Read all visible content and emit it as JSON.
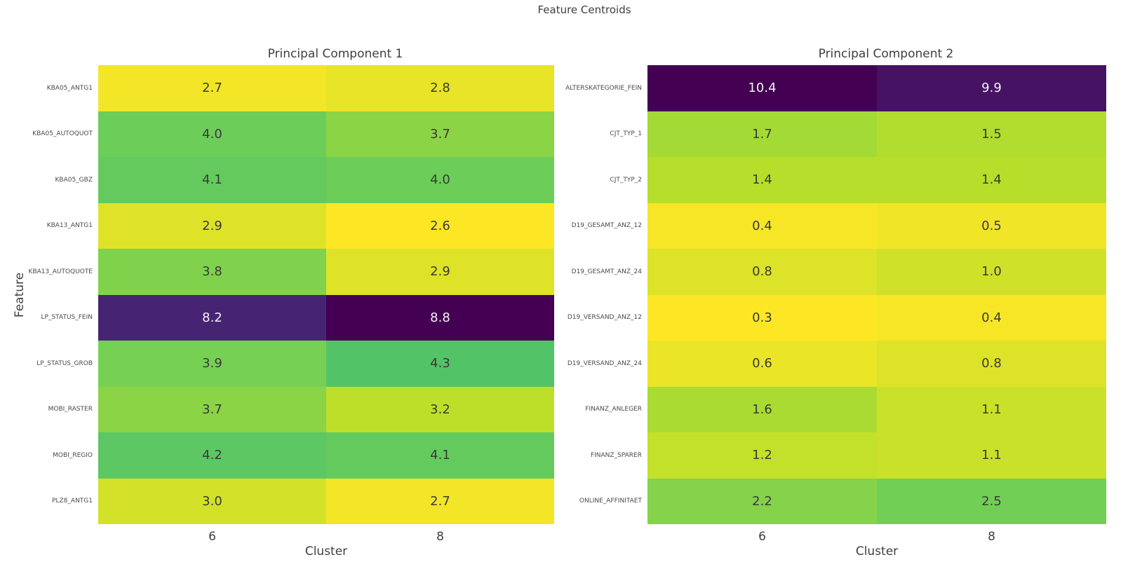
{
  "figure": {
    "title": "Feature Centroids"
  },
  "chart_data": [
    {
      "type": "heatmap",
      "title": "Principal Component 1",
      "xlabel": "Cluster",
      "ylabel": "Feature",
      "x_tick_labels": [
        "6",
        "8"
      ],
      "y_tick_labels": [
        "KBA05_ANTG1",
        "KBA05_AUTOQUOT",
        "KBA05_GBZ",
        "KBA13_ANTG1",
        "KBA13_AUTOQUOTE",
        "LP_STATUS_FEIN",
        "LP_STATUS_GROB",
        "MOBI_RASTER",
        "MOBI_REGIO",
        "PLZ8_ANTG1"
      ],
      "values": [
        [
          2.7,
          2.8
        ],
        [
          4.0,
          3.7
        ],
        [
          4.1,
          4.0
        ],
        [
          2.9,
          2.6
        ],
        [
          3.8,
          2.9
        ],
        [
          8.2,
          8.8
        ],
        [
          3.9,
          4.3
        ],
        [
          3.7,
          3.2
        ],
        [
          4.2,
          4.1
        ],
        [
          3.0,
          2.7
        ]
      ],
      "vmin": 2.6,
      "vmax": 8.8,
      "colormap": "viridis_r",
      "annotated": true,
      "annot_decimals": 1,
      "legend": "none",
      "grid": "off"
    },
    {
      "type": "heatmap",
      "title": "Principal Component 2",
      "xlabel": "Cluster",
      "ylabel": "",
      "x_tick_labels": [
        "6",
        "8"
      ],
      "y_tick_labels": [
        "ALTERSKATEGORIE_FEIN",
        "CJT_TYP_1",
        "CJT_TYP_2",
        "D19_GESAMT_ANZ_12",
        "D19_GESAMT_ANZ_24",
        "D19_VERSAND_ANZ_12",
        "D19_VERSAND_ANZ_24",
        "FINANZ_ANLEGER",
        "FINANZ_SPARER",
        "ONLINE_AFFINITAET"
      ],
      "values": [
        [
          10.4,
          9.9
        ],
        [
          1.7,
          1.5
        ],
        [
          1.4,
          1.4
        ],
        [
          0.4,
          0.5
        ],
        [
          0.8,
          1.0
        ],
        [
          0.3,
          0.4
        ],
        [
          0.6,
          0.8
        ],
        [
          1.6,
          1.1
        ],
        [
          1.2,
          1.1
        ],
        [
          2.2,
          2.5
        ]
      ],
      "vmin": 0.3,
      "vmax": 10.4,
      "colormap": "viridis_r",
      "annotated": true,
      "annot_decimals": 1,
      "legend": "none",
      "grid": "off"
    }
  ],
  "colors": {
    "background": "#ffffff",
    "title_text": "#3f3f3f",
    "tick_text": "#4a4a4a",
    "annot_dark": "#3a3a3a",
    "annot_light": "#f2f2f2",
    "viridis_stops": [
      "#440154",
      "#482878",
      "#3e4989",
      "#31688e",
      "#26828e",
      "#1f9e89",
      "#35b779",
      "#6ece58",
      "#b5de2b",
      "#fde725"
    ]
  }
}
